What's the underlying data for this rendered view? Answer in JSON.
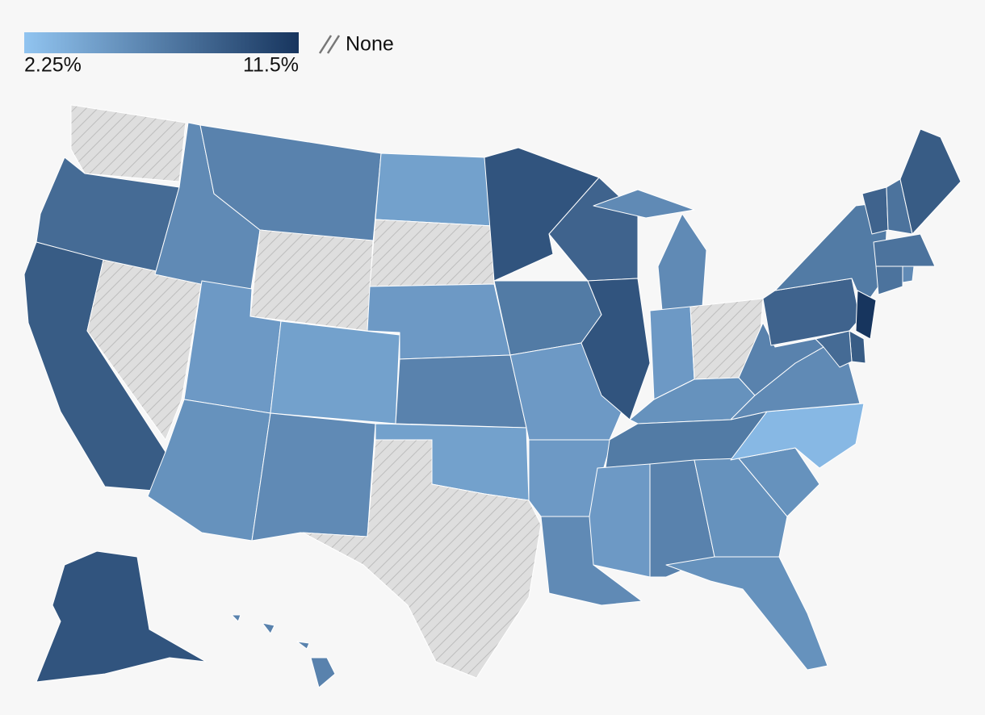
{
  "chart_data": {
    "type": "choropleth",
    "colorscale": {
      "lim": [
        2.25,
        11.5
      ],
      "ticks": [
        {
          "value": 2.25,
          "label": "2.25%"
        },
        {
          "value": 11.5,
          "label": "11.5%"
        }
      ],
      "colors": [
        "#91c4f0",
        "#17355e"
      ]
    },
    "none_label": "None",
    "values": [
      null,
      8,
      9,
      null,
      6,
      6.5,
      null,
      5,
      5.5,
      4.5,
      6,
      4.5,
      null,
      5,
      6.5,
      4.5,
      null,
      9.5,
      7,
      5,
      5,
      6,
      8.5,
      9.5,
      6,
      5,
      null,
      5.5,
      7,
      5,
      6.5,
      5.5,
      5.5,
      5.5,
      3,
      6,
      6.5,
      8.5,
      7,
      11.5,
      9,
      8,
      8.5,
      7.5,
      9,
      7.5,
      7.5,
      6,
      9.5,
      6.5
    ]
  }
}
